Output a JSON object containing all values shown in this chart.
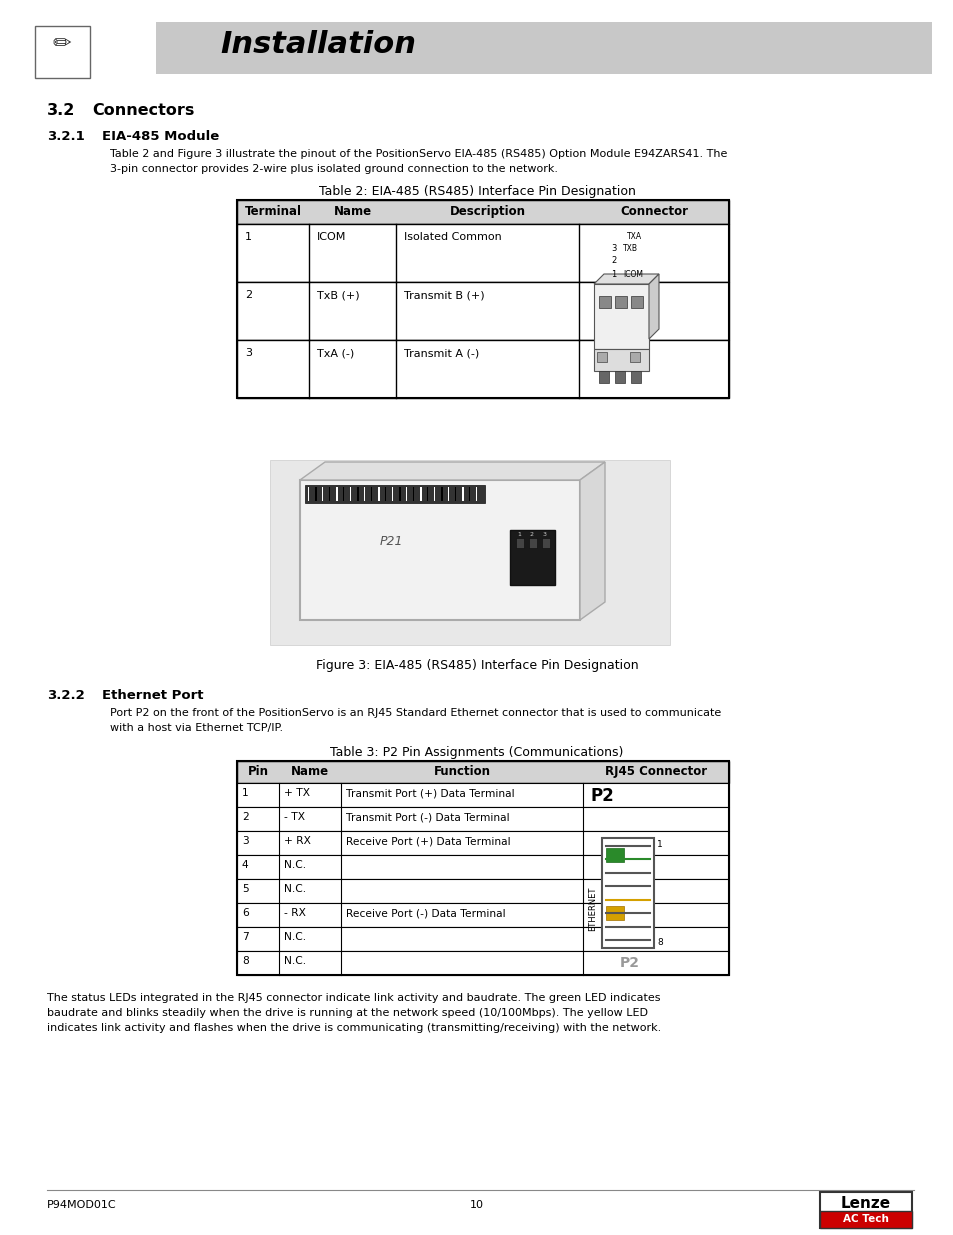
{
  "title": "Installation",
  "header_bg": "#c8c8c8",
  "page_bg": "#ffffff",
  "para1_line1": "Table 2 and Figure 3 illustrate the pinout of the PositionServo EIA-485 (RS485) Option Module E94ZARS41. The",
  "para1_line2": "3-pin connector provides 2-wire plus isolated ground connection to the network.",
  "table1_caption": "Table 2: EIA-485 (RS485) Interface Pin Designation",
  "table1_headers": [
    "Terminal",
    "Name",
    "Description",
    "Connector"
  ],
  "table1_rows": [
    [
      "1",
      "ICOM",
      "Isolated Common",
      ""
    ],
    [
      "2",
      "TxB (+)",
      "Transmit B (+)",
      ""
    ],
    [
      "3",
      "TxA (-)",
      "Transmit A (-)",
      ""
    ]
  ],
  "fig3_caption": "Figure 3: EIA-485 (RS485) Interface Pin Designation",
  "para2_line1": "Port P2 on the front of the PositionServo is an RJ45 Standard Ethernet connector that is used to communicate",
  "para2_line2": "with a host via Ethernet TCP/IP.",
  "table2_caption": "Table 3: P2 Pin Assignments (Communications)",
  "table2_headers": [
    "Pin",
    "Name",
    "Function",
    "RJ45 Connector"
  ],
  "table2_rows": [
    [
      "1",
      "+ TX",
      "Transmit Port (+) Data Terminal",
      ""
    ],
    [
      "2",
      "- TX",
      "Transmit Port (-) Data Terminal",
      ""
    ],
    [
      "3",
      "+ RX",
      "Receive Port (+) Data Terminal",
      ""
    ],
    [
      "4",
      "N.C.",
      "",
      ""
    ],
    [
      "5",
      "N.C.",
      "",
      ""
    ],
    [
      "6",
      "- RX",
      "Receive Port (-) Data Terminal",
      ""
    ],
    [
      "7",
      "N.C.",
      "",
      ""
    ],
    [
      "8",
      "N.C.",
      "",
      ""
    ]
  ],
  "para3_line1": "The status LEDs integrated in the RJ45 connector indicate link activity and baudrate. The green LED indicates",
  "para3_line2": "baudrate and blinks steadily when the drive is running at the network speed (10/100Mbps). The yellow LED",
  "para3_line3": "indicates link activity and flashes when the drive is communicating (transmitting/receiving) with the network.",
  "footer_left": "P94MOD01C",
  "footer_center": "10",
  "table_header_bg": "#d0d0d0",
  "body_font_size": 8.0,
  "caption_font_size": 9.0,
  "section_font_size": 11.5,
  "subsection_font_size": 9.5
}
